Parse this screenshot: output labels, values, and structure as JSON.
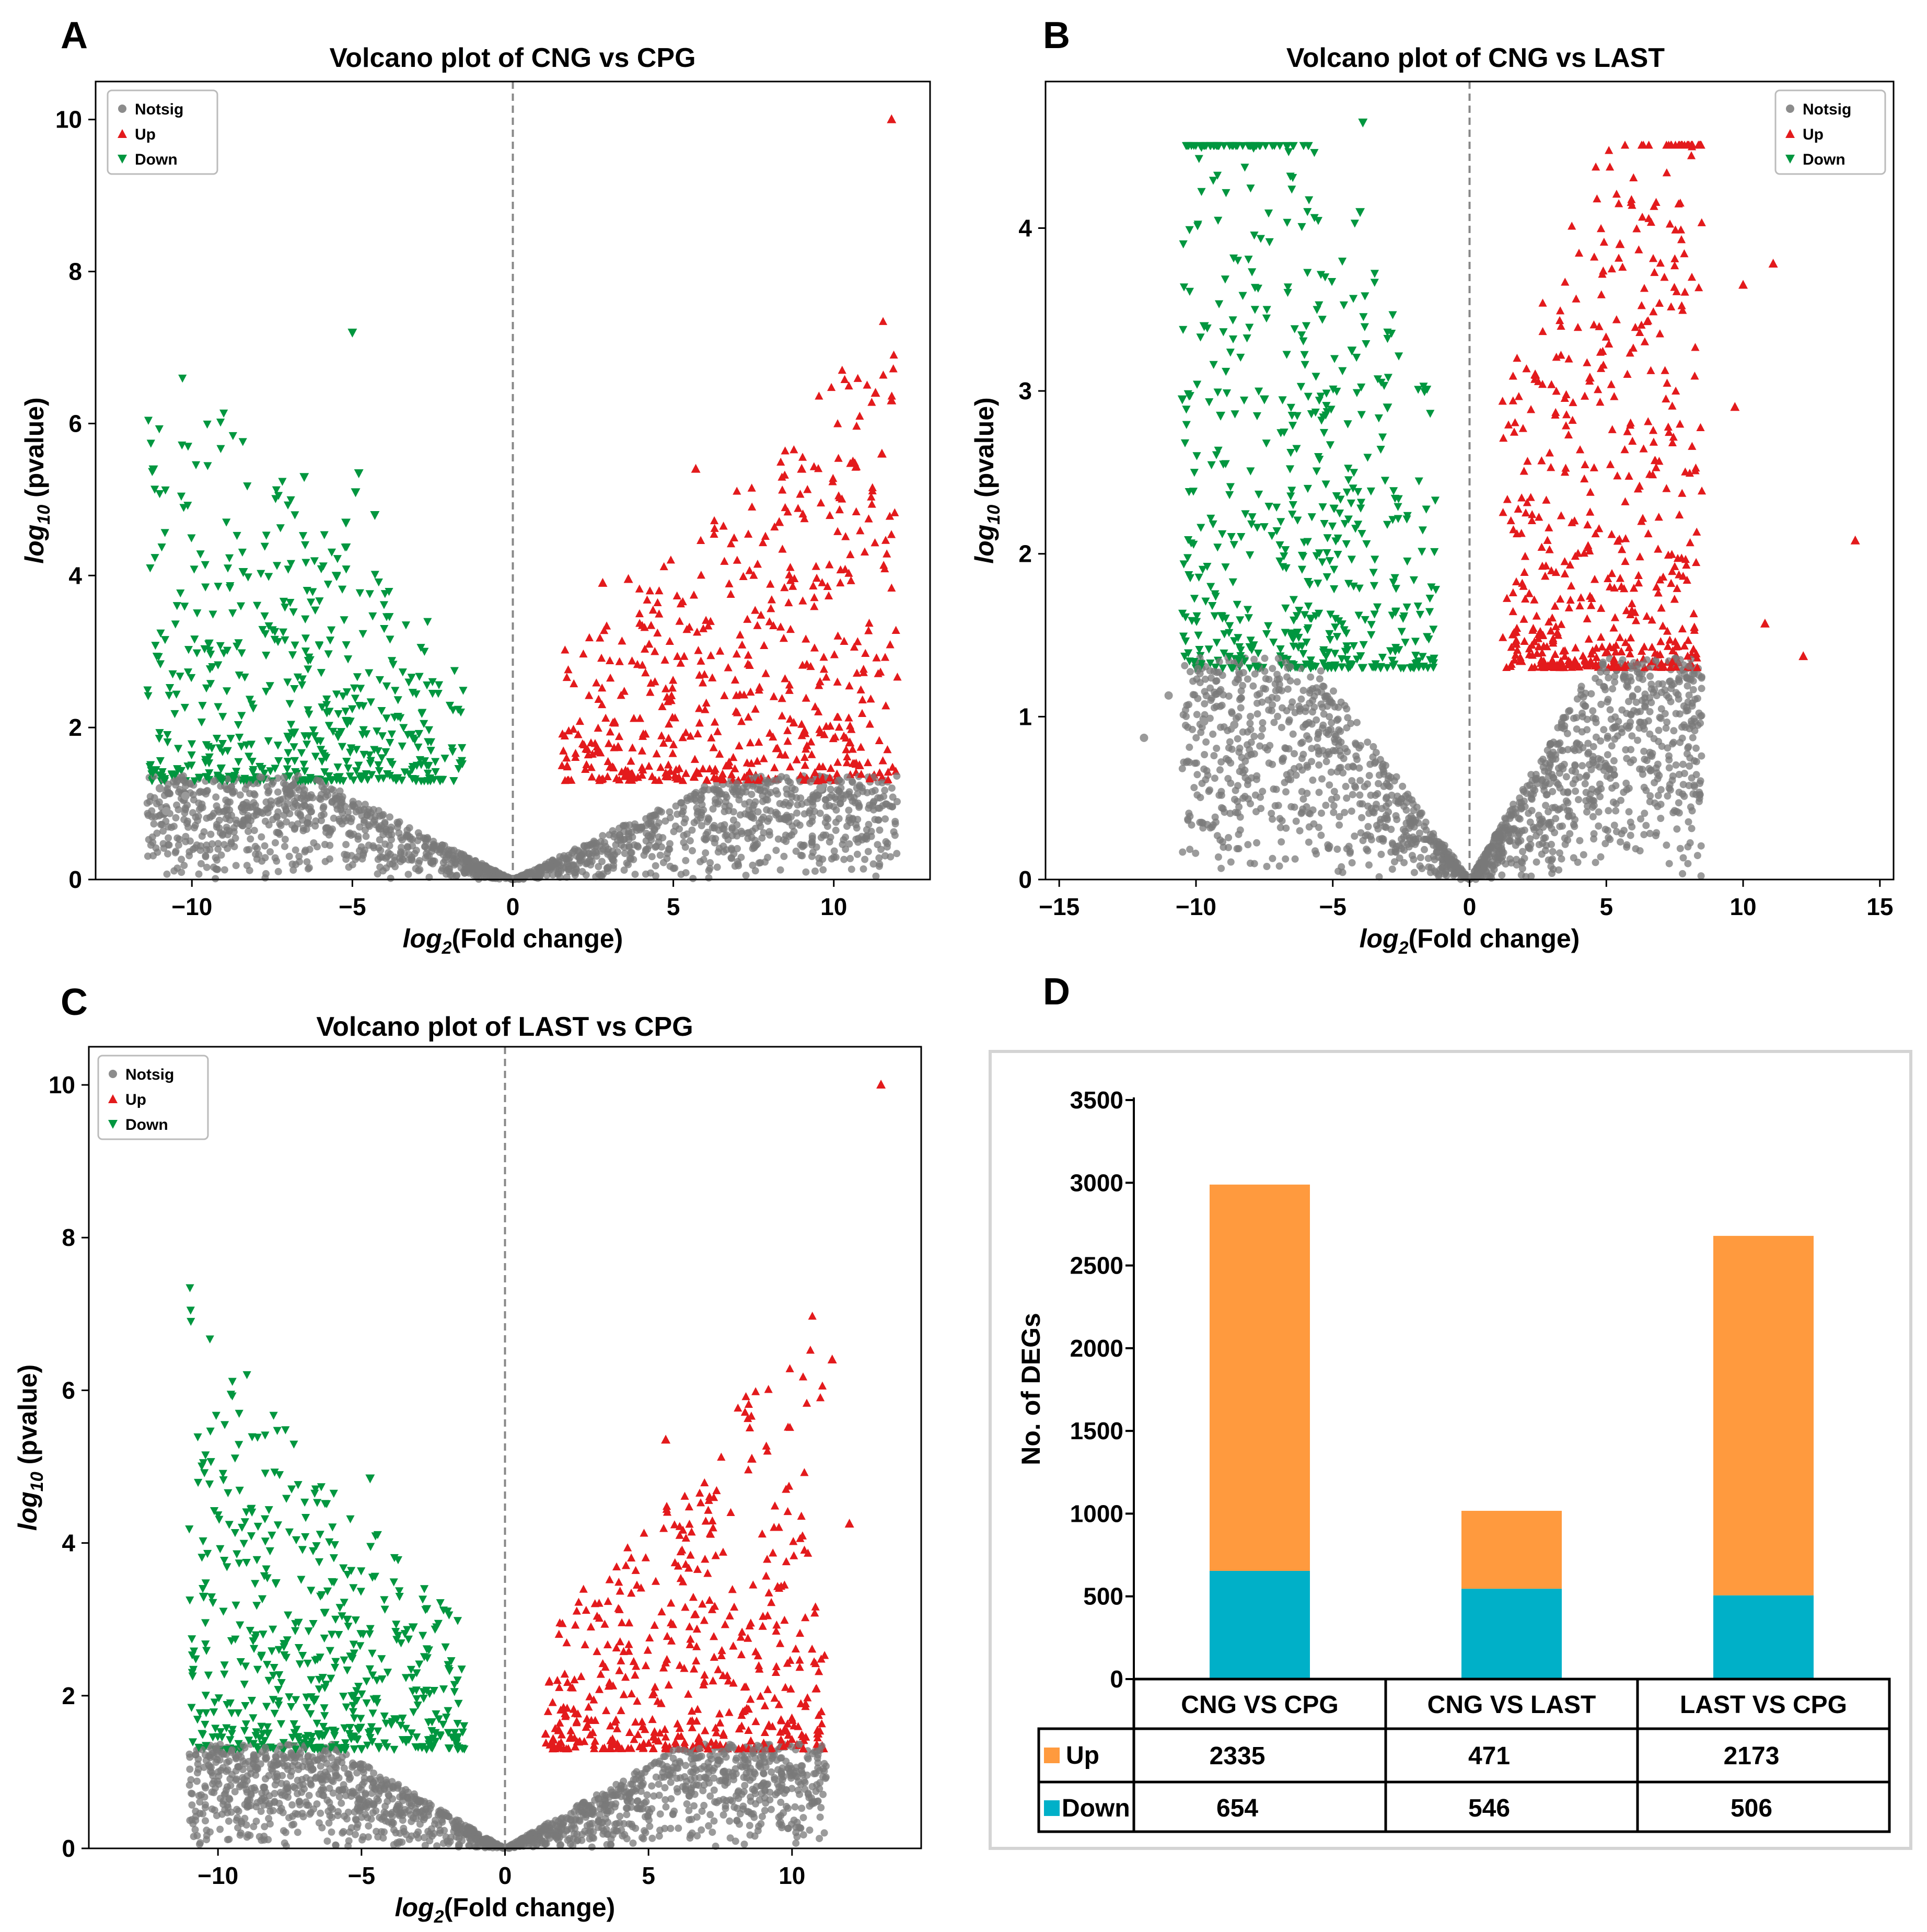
{
  "chart_data": [
    {
      "panel": "A",
      "type": "scatter",
      "title": "Volcano plot of CNG vs CPG",
      "xlabel": {
        "pre": "log",
        "sub": "2",
        "post": "(Fold change)"
      },
      "ylabel": {
        "pre": "log",
        "sub": "10",
        "post": " (pvalue)"
      },
      "xlim": [
        -13,
        13
      ],
      "ylim": [
        0,
        10.5
      ],
      "xticks": [
        -10,
        -5,
        0,
        5,
        10
      ],
      "xtick_labels": [
        "−10",
        "−5",
        "0",
        "5",
        "10"
      ],
      "yticks": [
        0,
        2,
        4,
        6,
        8,
        10
      ],
      "ytick_labels": [
        "0",
        "2",
        "4",
        "6",
        "8",
        "10"
      ],
      "threshold": 1.3,
      "fc_cut": 1.5,
      "xspread": [
        -11.4,
        12
      ],
      "legend": [
        "Notsig",
        "Up",
        "Down"
      ],
      "colors": {
        "notsig": "#7a7a7a",
        "up": "#e31a1c",
        "down": "#00963f"
      },
      "highlights": [
        {
          "x": 11.8,
          "y": 10.0,
          "g": "up"
        },
        {
          "x": 11.3,
          "y": 6.4,
          "g": "up"
        },
        {
          "x": 11.8,
          "y": 6.3,
          "g": "up"
        },
        {
          "x": 11.5,
          "y": 5.6,
          "g": "up"
        },
        {
          "x": 9.0,
          "y": 5.4,
          "g": "up"
        },
        {
          "x": 5.7,
          "y": 5.4,
          "g": "up"
        },
        {
          "x": 8.3,
          "y": 4.7,
          "g": "up"
        },
        {
          "x": 10.5,
          "y": 1.8,
          "g": "up"
        },
        {
          "x": 9.5,
          "y": 1.3,
          "g": "up"
        },
        {
          "x": 10.8,
          "y": 1.5,
          "g": "up"
        },
        {
          "x": 2.8,
          "y": 3.9,
          "g": "up"
        },
        {
          "x": 3.6,
          "y": 3.95,
          "g": "up"
        },
        {
          "x": -5.0,
          "y": 7.2,
          "g": "down"
        },
        {
          "x": -11.2,
          "y": 5.4,
          "g": "down"
        },
        {
          "x": -6.5,
          "y": 5.3,
          "g": "down"
        },
        {
          "x": -4.8,
          "y": 5.35,
          "g": "down"
        },
        {
          "x": -4.9,
          "y": 5.1,
          "g": "down"
        },
        {
          "x": -4.3,
          "y": 4.8,
          "g": "down"
        },
        {
          "x": -5.2,
          "y": 4.7,
          "g": "down"
        },
        {
          "x": -5.5,
          "y": 4.0,
          "g": "down"
        },
        {
          "x": -8.4,
          "y": 4.05,
          "g": "down"
        },
        {
          "x": -11.0,
          "y": 1.2,
          "g": "notsig"
        },
        {
          "x": -10.8,
          "y": 0.9,
          "g": "notsig"
        },
        {
          "x": -10.2,
          "y": 1.1,
          "g": "notsig"
        },
        {
          "x": 9.6,
          "y": 1.2,
          "g": "notsig"
        }
      ]
    },
    {
      "panel": "B",
      "type": "scatter",
      "title": "Volcano plot of CNG vs LAST",
      "xlabel": {
        "pre": "log",
        "sub": "2",
        "post": "(Fold change)"
      },
      "ylabel": {
        "pre": "log",
        "sub": "10",
        "post": " (pvalue)"
      },
      "xlim": [
        -15.5,
        15.5
      ],
      "ylim": [
        0,
        4.9
      ],
      "xticks": [
        -15,
        -10,
        -5,
        0,
        5,
        10,
        15
      ],
      "xtick_labels": [
        "−15",
        "−10",
        "−5",
        "0",
        "5",
        "10",
        "15"
      ],
      "yticks": [
        0,
        1,
        2,
        3,
        4
      ],
      "ytick_labels": [
        "0",
        "1",
        "2",
        "3",
        "4"
      ],
      "threshold": 1.3,
      "fc_cut": 1.2,
      "xspread": [
        -10.5,
        8.5
      ],
      "legend": [
        "Notsig",
        "Up",
        "Down"
      ],
      "colors": {
        "notsig": "#7a7a7a",
        "up": "#e31a1c",
        "down": "#00963f"
      },
      "highlights": [
        {
          "x": -3.9,
          "y": 4.65,
          "g": "down"
        },
        {
          "x": -9.8,
          "y": 4.5,
          "g": "down"
        },
        {
          "x": -4.0,
          "y": 4.1,
          "g": "down"
        },
        {
          "x": -9.7,
          "y": 3.4,
          "g": "down"
        },
        {
          "x": -4.3,
          "y": 3.25,
          "g": "down"
        },
        {
          "x": -10.5,
          "y": 2.95,
          "g": "down"
        },
        {
          "x": -3.0,
          "y": 2.9,
          "g": "down"
        },
        {
          "x": -7.5,
          "y": 2.95,
          "g": "down"
        },
        {
          "x": -9.1,
          "y": 2.85,
          "g": "down"
        },
        {
          "x": 5.5,
          "y": 3.9,
          "g": "up"
        },
        {
          "x": 11.1,
          "y": 3.78,
          "g": "up"
        },
        {
          "x": 10.0,
          "y": 3.65,
          "g": "up"
        },
        {
          "x": 2.4,
          "y": 3.1,
          "g": "up"
        },
        {
          "x": 4.4,
          "y": 3.08,
          "g": "up"
        },
        {
          "x": 9.7,
          "y": 2.9,
          "g": "up"
        },
        {
          "x": 14.1,
          "y": 2.08,
          "g": "up"
        },
        {
          "x": 10.8,
          "y": 1.57,
          "g": "up"
        },
        {
          "x": 12.2,
          "y": 1.37,
          "g": "up"
        },
        {
          "x": -11.0,
          "y": 1.13,
          "g": "notsig"
        },
        {
          "x": -9.7,
          "y": 0.97,
          "g": "notsig"
        },
        {
          "x": -11.9,
          "y": 0.87,
          "g": "notsig"
        },
        {
          "x": -8.6,
          "y": 0.95,
          "g": "notsig"
        }
      ]
    },
    {
      "panel": "C",
      "type": "scatter",
      "title": "Volcano plot of LAST vs CPG",
      "xlabel": {
        "pre": "log",
        "sub": "2",
        "post": "(Fold change)"
      },
      "ylabel": {
        "pre": "log",
        "sub": "10",
        "post": " (pvalue)"
      },
      "xlim": [
        -14.5,
        14.5
      ],
      "ylim": [
        0,
        10.5
      ],
      "xticks": [
        -10,
        -5,
        0,
        5,
        10
      ],
      "xtick_labels": [
        "−10",
        "−5",
        "0",
        "5",
        "10"
      ],
      "yticks": [
        0,
        2,
        4,
        6,
        8,
        10
      ],
      "ytick_labels": [
        "0",
        "2",
        "4",
        "6",
        "8",
        "10"
      ],
      "threshold": 1.3,
      "fc_cut": 1.4,
      "xspread": [
        -11.0,
        11.2
      ],
      "legend": [
        "Notsig",
        "Up",
        "Down"
      ],
      "colors": {
        "notsig": "#7a7a7a",
        "up": "#e31a1c",
        "down": "#00963f"
      },
      "highlights": [
        {
          "x": 13.1,
          "y": 10.0,
          "g": "up"
        },
        {
          "x": 11.4,
          "y": 6.4,
          "g": "up"
        },
        {
          "x": 5.6,
          "y": 5.35,
          "g": "up"
        },
        {
          "x": 8.6,
          "y": 5.1,
          "g": "up"
        },
        {
          "x": 12.0,
          "y": 4.25,
          "g": "up"
        },
        {
          "x": 10.9,
          "y": 1.5,
          "g": "up"
        },
        {
          "x": -4.7,
          "y": 4.85,
          "g": "down"
        },
        {
          "x": -10.5,
          "y": 3.3,
          "g": "down"
        },
        {
          "x": -5.5,
          "y": 3.0,
          "g": "down"
        },
        {
          "x": -3.2,
          "y": 2.9,
          "g": "down"
        }
      ]
    },
    {
      "panel": "D",
      "type": "bar",
      "stacked": true,
      "categories": [
        "CNG VS CPG",
        "CNG VS LAST",
        "LAST VS CPG"
      ],
      "series": [
        {
          "name": "Down",
          "values": [
            654,
            546,
            506
          ],
          "color": "#00b0c8"
        },
        {
          "name": "Up",
          "values": [
            2335,
            471,
            2173
          ],
          "color": "#ff9a3e"
        }
      ],
      "ylabel": "No. of DEGs",
      "ylim": [
        0,
        3500
      ],
      "yticks": [
        0,
        500,
        1000,
        1500,
        2000,
        2500,
        3000,
        3500
      ],
      "ytick_labels": [
        "0",
        "500",
        "1000",
        "1500",
        "2000",
        "2500",
        "3000",
        "3500"
      ],
      "table": {
        "rows": [
          {
            "label": "Up",
            "values": [
              "2335",
              "471",
              "2173"
            ]
          },
          {
            "label": "Down",
            "values": [
              "654",
              "546",
              "506"
            ]
          }
        ]
      }
    }
  ]
}
